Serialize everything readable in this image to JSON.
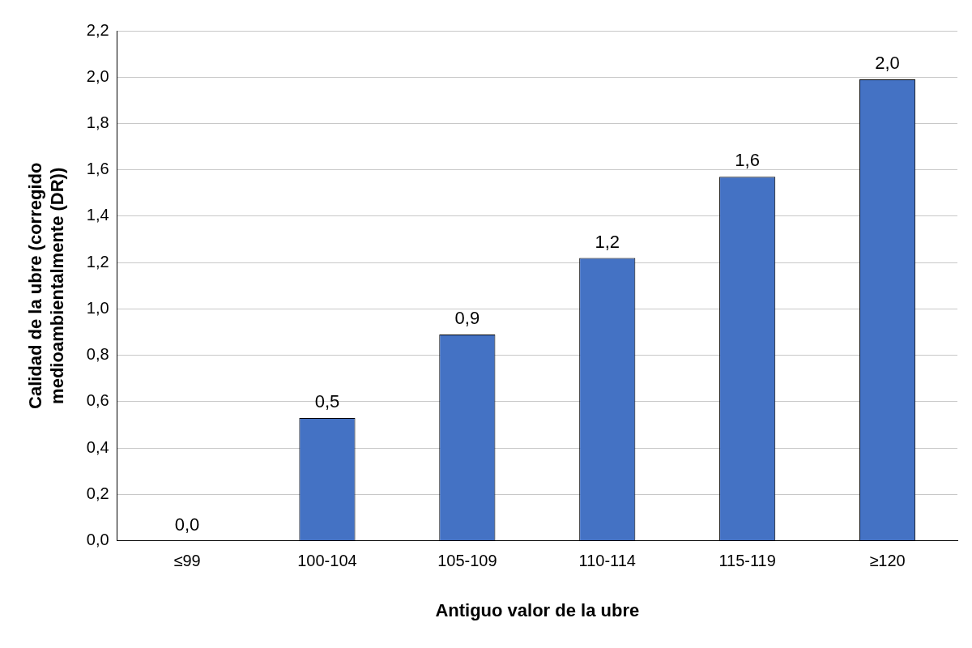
{
  "chart_data": {
    "type": "bar",
    "xlabel": "Antiguo valor de la ubre",
    "ylabel": "Calidad de la ubre (corregido medioambientalmente (DR))",
    "categories": [
      "≤99",
      "100-104",
      "105-109",
      "110-114",
      "115-119",
      "≥120"
    ],
    "values": [
      0,
      0.53,
      0.89,
      1.22,
      1.57,
      1.99
    ],
    "value_labels": [
      "0,0",
      "0,5",
      "0,9",
      "1,2",
      "1,6",
      "2,0"
    ],
    "color": "#4472c4",
    "ylim": [
      0,
      2.2
    ],
    "yticks": [
      {
        "value": 0,
        "label": "0,0"
      },
      {
        "value": 0.2,
        "label": "0,2"
      },
      {
        "value": 0.4,
        "label": "0,4"
      },
      {
        "value": 0.6,
        "label": "0,6"
      },
      {
        "value": 0.8,
        "label": "0,8"
      },
      {
        "value": 1,
        "label": "1,0"
      },
      {
        "value": 1.2,
        "label": "1,2"
      },
      {
        "value": 1.4,
        "label": "1,4"
      },
      {
        "value": 1.6,
        "label": "1,6"
      },
      {
        "value": 1.8,
        "label": "1,8"
      },
      {
        "value": 2,
        "label": "2,0"
      },
      {
        "value": 2.2,
        "label": "2,2"
      }
    ],
    "grid": "y",
    "legend": false
  }
}
